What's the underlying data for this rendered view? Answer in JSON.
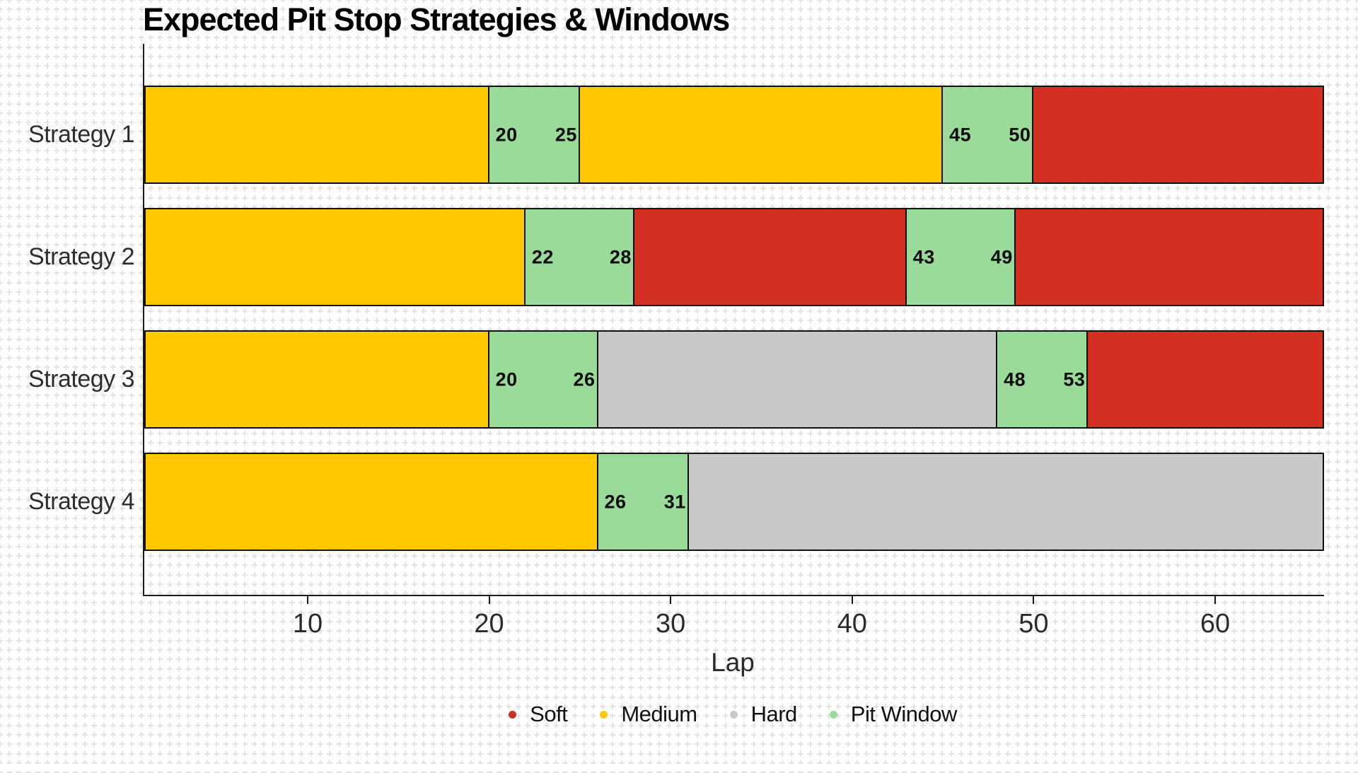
{
  "title": "Expected Pit Stop Strategies & Windows",
  "chart_data": {
    "type": "bar",
    "orientation": "horizontal",
    "stacked": true,
    "title": "Expected Pit Stop Strategies & Windows",
    "xlabel": "Lap",
    "xlim": [
      1,
      66
    ],
    "xticks": [
      10,
      20,
      30,
      40,
      50,
      60
    ],
    "grid_style": "light gray dashed graph-paper crosses over white background",
    "categories": [
      "Strategy 1",
      "Strategy 2",
      "Strategy 3",
      "Strategy 4"
    ],
    "compound_colors": {
      "soft": "#d32f23",
      "medium": "#ffc800",
      "hard": "#c9c9c9",
      "pit_window": "#9adb9a"
    },
    "legend": {
      "position": "bottom-center",
      "items": [
        {
          "label": "Soft",
          "compound": "soft"
        },
        {
          "label": "Medium",
          "compound": "medium"
        },
        {
          "label": "Hard",
          "compound": "hard"
        },
        {
          "label": "Pit Window",
          "compound": "pit_window"
        }
      ]
    },
    "strategies": [
      {
        "label": "Strategy 1",
        "segments": [
          {
            "compound": "medium",
            "from": 1,
            "to": 20
          },
          {
            "compound": "pit_window",
            "from": 20,
            "to": 25,
            "start_label": "20",
            "end_label": "25"
          },
          {
            "compound": "medium",
            "from": 25,
            "to": 45
          },
          {
            "compound": "pit_window",
            "from": 45,
            "to": 50,
            "start_label": "45",
            "end_label": "50"
          },
          {
            "compound": "soft",
            "from": 50,
            "to": 66
          }
        ]
      },
      {
        "label": "Strategy 2",
        "segments": [
          {
            "compound": "medium",
            "from": 1,
            "to": 22
          },
          {
            "compound": "pit_window",
            "from": 22,
            "to": 28,
            "start_label": "22",
            "end_label": "28"
          },
          {
            "compound": "soft",
            "from": 28,
            "to": 43
          },
          {
            "compound": "pit_window",
            "from": 43,
            "to": 49,
            "start_label": "43",
            "end_label": "49"
          },
          {
            "compound": "soft",
            "from": 49,
            "to": 66
          }
        ]
      },
      {
        "label": "Strategy 3",
        "segments": [
          {
            "compound": "medium",
            "from": 1,
            "to": 20
          },
          {
            "compound": "pit_window",
            "from": 20,
            "to": 26,
            "start_label": "20",
            "end_label": "26"
          },
          {
            "compound": "hard",
            "from": 26,
            "to": 48
          },
          {
            "compound": "pit_window",
            "from": 48,
            "to": 53,
            "start_label": "48",
            "end_label": "53"
          },
          {
            "compound": "soft",
            "from": 53,
            "to": 66
          }
        ]
      },
      {
        "label": "Strategy 4",
        "segments": [
          {
            "compound": "medium",
            "from": 1,
            "to": 26
          },
          {
            "compound": "pit_window",
            "from": 26,
            "to": 31,
            "start_label": "26",
            "end_label": "31"
          },
          {
            "compound": "hard",
            "from": 31,
            "to": 66
          }
        ]
      }
    ]
  }
}
